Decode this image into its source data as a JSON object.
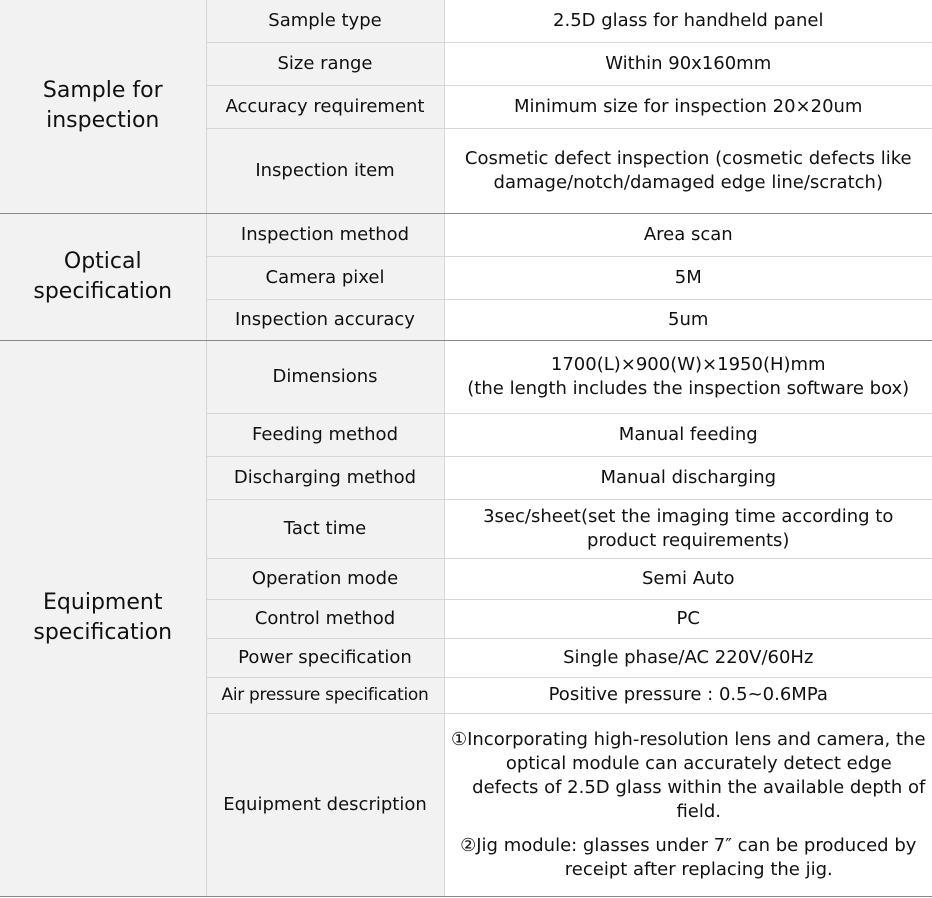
{
  "groups": {
    "sample": {
      "title": "Sample for inspection",
      "rows": [
        {
          "label": "Sample type",
          "value": "2.5D glass for handheld panel"
        },
        {
          "label": "Size range",
          "value": "Within 90x160mm"
        },
        {
          "label": "Accuracy requirement",
          "value": "Minimum size for inspection 20×20um"
        },
        {
          "label": "Inspection item",
          "value": "Cosmetic defect inspection (cosmetic defects like damage/notch/damaged edge line/scratch)"
        }
      ]
    },
    "optical": {
      "title": "Optical specification",
      "rows": [
        {
          "label": "Inspection method",
          "value": "Area scan"
        },
        {
          "label": "Camera pixel",
          "value": "5M"
        },
        {
          "label": "Inspection accuracy",
          "value": "5um"
        }
      ]
    },
    "equipment": {
      "title": "Equipment specification",
      "rows": [
        {
          "label": "Dimensions",
          "value": "1700(L)×900(W)×1950(H)mm",
          "value2": "(the length includes the inspection software box)"
        },
        {
          "label": "Feeding method",
          "value": "Manual feeding"
        },
        {
          "label": "Discharging method",
          "value": "Manual discharging"
        },
        {
          "label": "Tact time",
          "value": "3sec/sheet(set the imaging time according to product requirements)"
        },
        {
          "label": "Operation mode",
          "value": "Semi Auto"
        },
        {
          "label": "Control method",
          "value": "PC"
        },
        {
          "label": "Power specification",
          "value": "Single phase/AC 220V/60Hz"
        },
        {
          "label": "Air pressure specification",
          "value": "Positive pressure : 0.5~0.6MPa"
        },
        {
          "label": "Equipment description",
          "items": [
            "①Incorporating high-resolution lens and camera, the optical module can accurately detect edge defects of 2.5D glass within the available depth of field.",
            "②Jig module: glasses under 7″ can be produced by receipt after replacing the jig."
          ]
        }
      ]
    }
  }
}
